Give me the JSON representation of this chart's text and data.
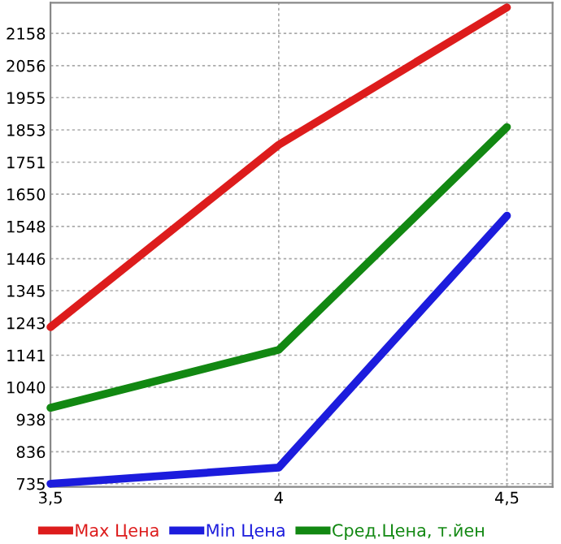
{
  "chart_data": {
    "type": "line",
    "x": [
      3.5,
      4,
      4.5
    ],
    "series": [
      {
        "name": "Max Цена",
        "color": "#dd1c1c",
        "values": [
          1230,
          1806,
          2240
        ]
      },
      {
        "name": "Min Цена",
        "color": "#1c1cdd",
        "values": [
          735,
          786,
          1582
        ]
      },
      {
        "name": "Сред.Цена, т.йен",
        "color": "#128812",
        "values": [
          975,
          1158,
          1862
        ]
      }
    ],
    "xlim": [
      3.5,
      4.6
    ],
    "ylim": [
      725,
      2255
    ],
    "xticks": [
      {
        "value": 3.5,
        "label": "3,5"
      },
      4,
      {
        "value": 4.5,
        "label": "4,5"
      }
    ],
    "yticks": [
      735,
      836,
      938,
      1040,
      1141,
      1243,
      1345,
      1446,
      1548,
      1650,
      1751,
      1853,
      1955,
      2056,
      2158
    ],
    "grid": true,
    "legend": "bottom",
    "marker": "none",
    "line_style": "solid"
  }
}
